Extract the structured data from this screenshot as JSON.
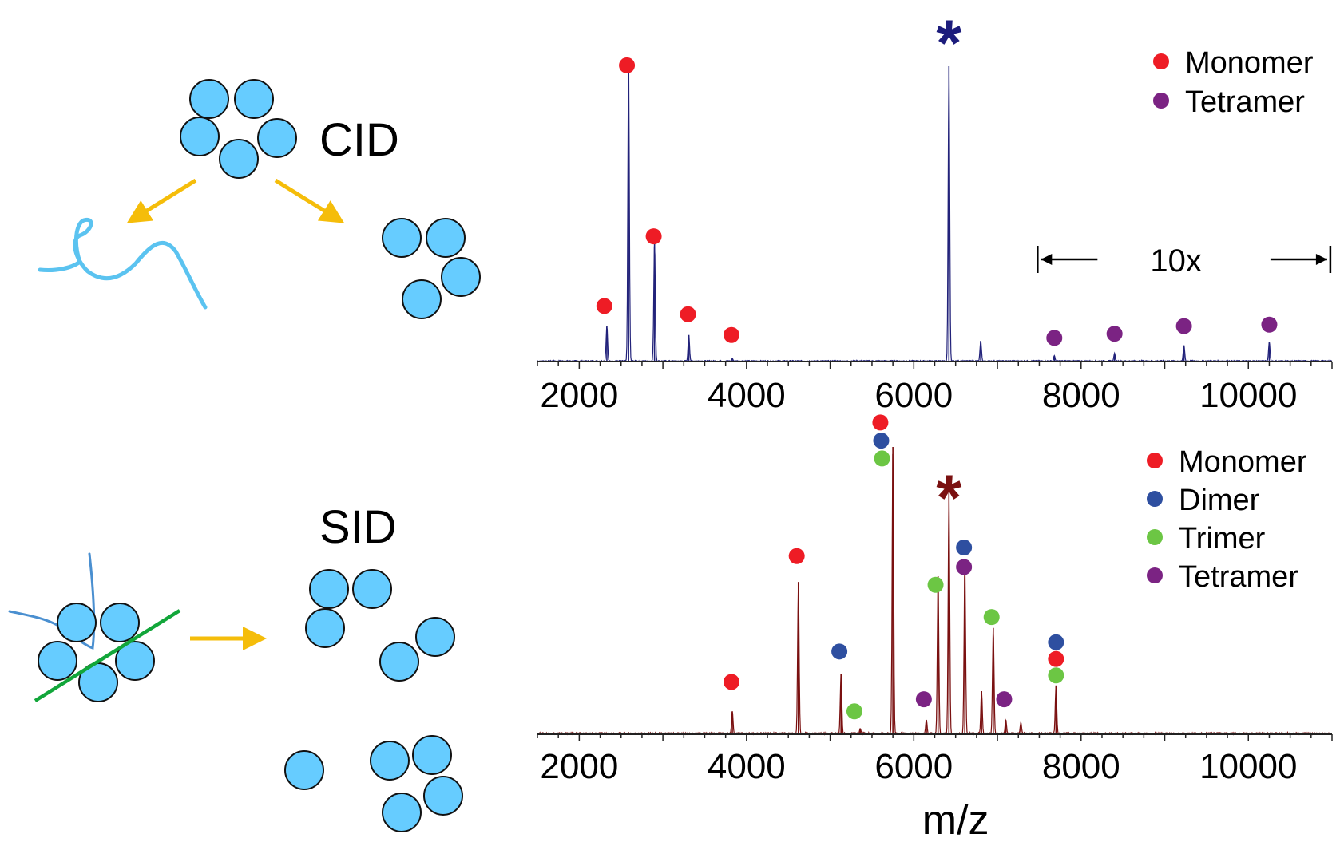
{
  "schematic": {
    "cid_label": "CID",
    "sid_label": "SID",
    "colors": {
      "subunit": "#66ccff",
      "arrow": "#f5bd0a",
      "chain": "#5bc3f0",
      "sid_chain": "#4a8fd0",
      "surface": "#12a63a"
    }
  },
  "chart_data": [
    {
      "type": "line",
      "name_hint": "CID spectrum",
      "color": "#22227a",
      "xlim": [
        1500,
        11000
      ],
      "xticks": [
        2000,
        4000,
        6000,
        8000,
        10000
      ],
      "xlabel": "",
      "star": {
        "x": 6420,
        "color": "#1c1c7c"
      },
      "peaks": [
        {
          "x": 2330,
          "y": 0.12
        },
        {
          "x": 2590,
          "y": 1.0
        },
        {
          "x": 2900,
          "y": 0.4
        },
        {
          "x": 3310,
          "y": 0.09
        },
        {
          "x": 3830,
          "y": 0.01
        },
        {
          "x": 6420,
          "y": 1.0
        },
        {
          "x": 6800,
          "y": 0.07
        },
        {
          "x": 7680,
          "y": 0.02
        },
        {
          "x": 8400,
          "y": 0.028
        },
        {
          "x": 9230,
          "y": 0.055
        },
        {
          "x": 10250,
          "y": 0.065
        }
      ],
      "markers": [
        {
          "x": 2300,
          "y": 0.188,
          "type": "Monomer"
        },
        {
          "x": 2570,
          "y": 1.003,
          "type": "Monomer"
        },
        {
          "x": 2890,
          "y": 0.424,
          "type": "Monomer"
        },
        {
          "x": 3300,
          "y": 0.16,
          "type": "Monomer"
        },
        {
          "x": 3820,
          "y": 0.09,
          "type": "Tetramer_none"
        },
        {
          "x": 7680,
          "y": 0.08,
          "type": "Tetramer"
        },
        {
          "x": 8400,
          "y": 0.094,
          "type": "Tetramer"
        },
        {
          "x": 9230,
          "y": 0.12,
          "type": "Tetramer"
        },
        {
          "x": 10250,
          "y": 0.125,
          "type": "Tetramer"
        }
      ],
      "magnification": {
        "label": "10x",
        "from": 7480,
        "to": 10980
      },
      "legend": [
        {
          "name": "Monomer",
          "color": "#ee1c25"
        },
        {
          "name": "Tetramer",
          "color": "#7b2383"
        }
      ]
    },
    {
      "type": "line",
      "name_hint": "SID spectrum",
      "color": "#7a1010",
      "xlim": [
        1500,
        11000
      ],
      "xticks": [
        2000,
        4000,
        6000,
        8000,
        10000
      ],
      "xlabel": "m/z",
      "star": {
        "x": 6420,
        "color": "#7a1010"
      },
      "peaks": [
        {
          "x": 3830,
          "y": 0.08
        },
        {
          "x": 4620,
          "y": 0.53
        },
        {
          "x": 5130,
          "y": 0.21
        },
        {
          "x": 5360,
          "y": 0.02
        },
        {
          "x": 5750,
          "y": 1.0
        },
        {
          "x": 6150,
          "y": 0.05
        },
        {
          "x": 6290,
          "y": 0.55
        },
        {
          "x": 6420,
          "y": 0.84
        },
        {
          "x": 6610,
          "y": 0.6
        },
        {
          "x": 6810,
          "y": 0.15
        },
        {
          "x": 6950,
          "y": 0.37
        },
        {
          "x": 7100,
          "y": 0.05
        },
        {
          "x": 7280,
          "y": 0.04
        },
        {
          "x": 7700,
          "y": 0.17
        }
      ],
      "markers": [
        {
          "x": 3820,
          "y": 0.182,
          "type": "Monomer"
        },
        {
          "x": 4600,
          "y": 0.62,
          "type": "Monomer"
        },
        {
          "x": 5600,
          "y": 1.085,
          "type": "Monomer"
        },
        {
          "x": 5610,
          "y": 1.022,
          "type": "Dimer"
        },
        {
          "x": 5620,
          "y": 0.96,
          "type": "Trimer"
        },
        {
          "x": 5110,
          "y": 0.288,
          "type": "Dimer"
        },
        {
          "x": 5290,
          "y": 0.08,
          "type": "Trimer"
        },
        {
          "x": 6120,
          "y": 0.122,
          "type": "Tetramer"
        },
        {
          "x": 6260,
          "y": 0.52,
          "type": "Trimer"
        },
        {
          "x": 6600,
          "y": 0.65,
          "type": "Dimer"
        },
        {
          "x": 6600,
          "y": 0.582,
          "type": "Tetramer"
        },
        {
          "x": 6930,
          "y": 0.408,
          "type": "Trimer"
        },
        {
          "x": 7080,
          "y": 0.122,
          "type": "Tetramer"
        },
        {
          "x": 7700,
          "y": 0.32,
          "type": "Dimer"
        },
        {
          "x": 7700,
          "y": 0.262,
          "type": "Monomer"
        },
        {
          "x": 7700,
          "y": 0.205,
          "type": "Trimer"
        }
      ],
      "legend": [
        {
          "name": "Monomer",
          "color": "#ee1c25"
        },
        {
          "name": "Dimer",
          "color": "#2e4fa0"
        },
        {
          "name": "Trimer",
          "color": "#6cc644"
        },
        {
          "name": "Tetramer",
          "color": "#7b2383"
        }
      ]
    }
  ]
}
